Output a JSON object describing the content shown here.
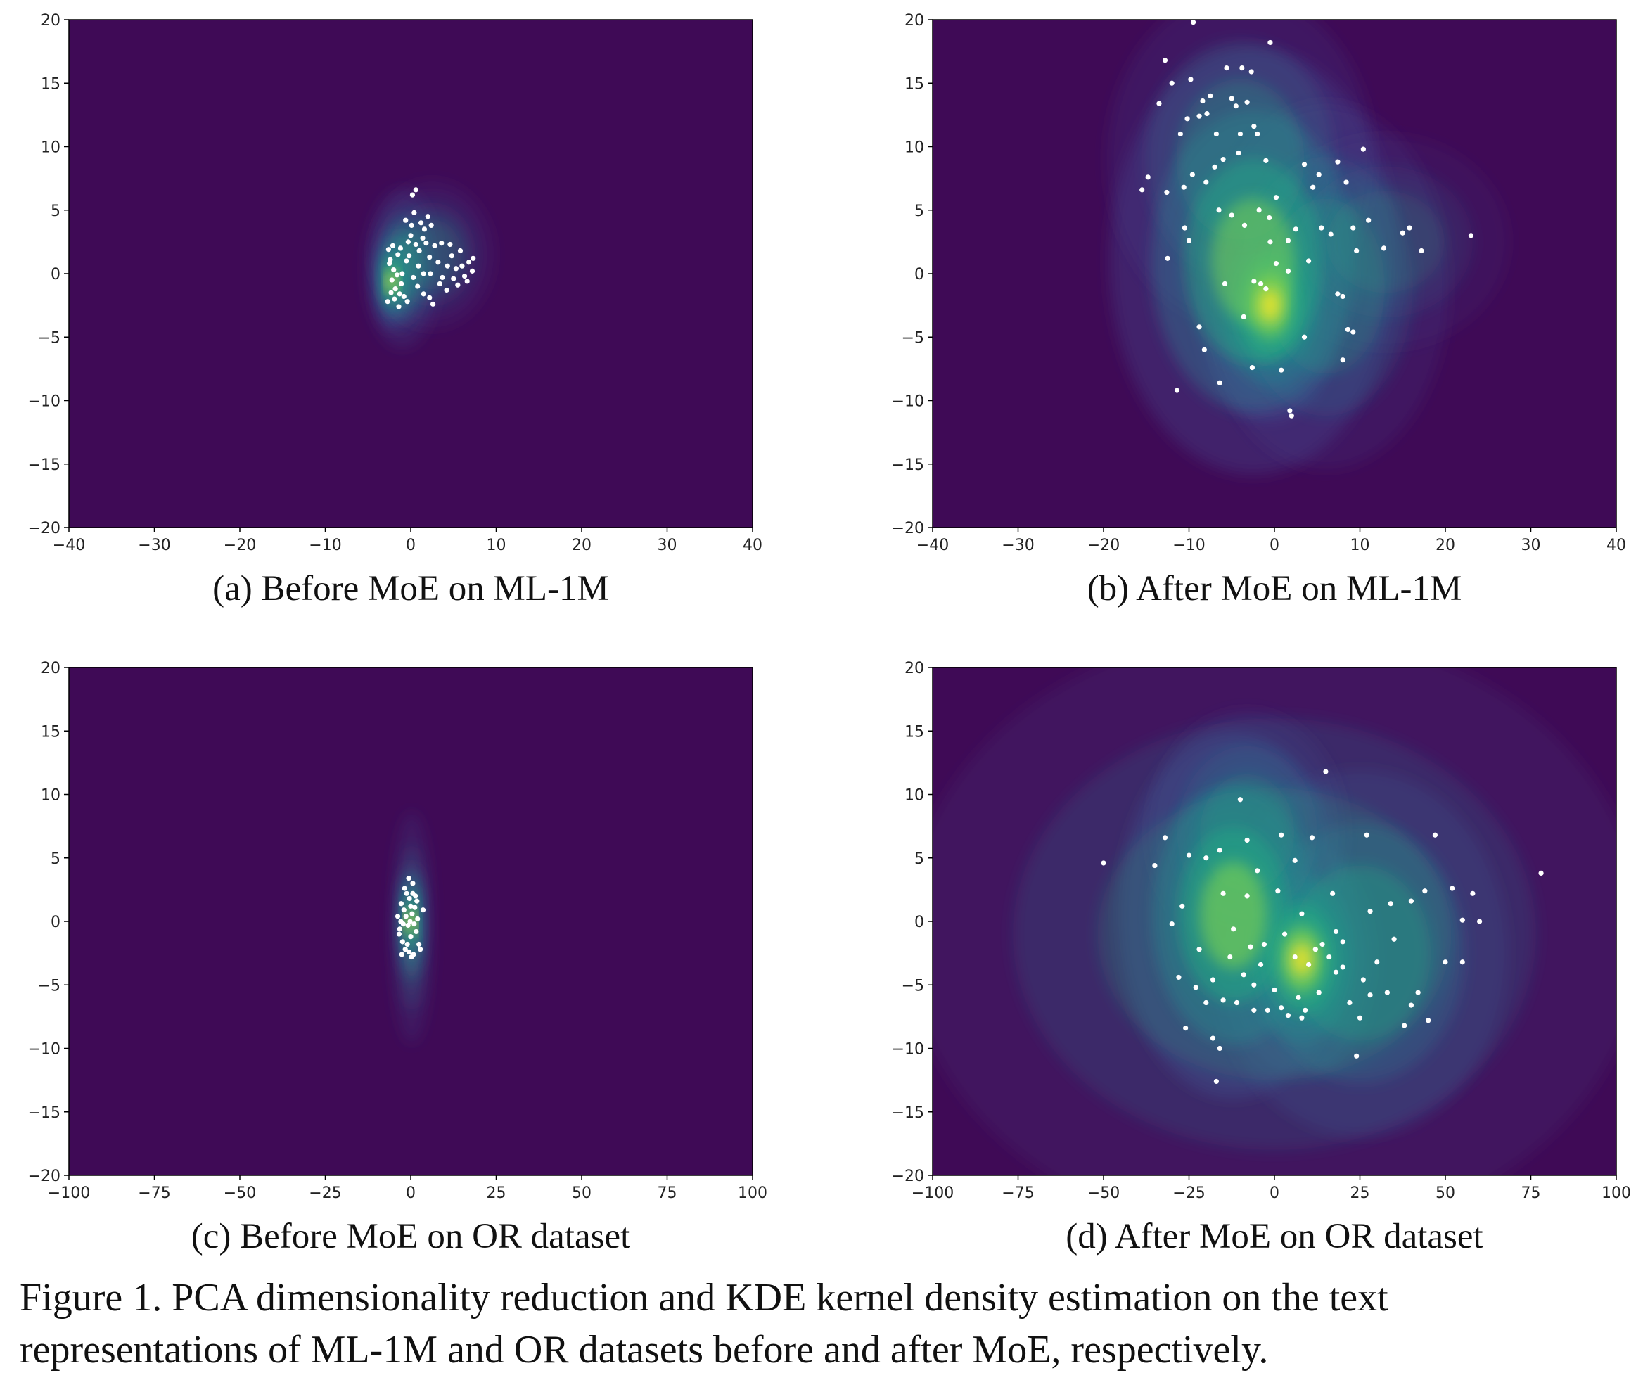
{
  "colors": {
    "background": "#3f0a56",
    "low": "#414487",
    "mid": "#2a788e",
    "high": "#22a884",
    "peak": "#7ad151",
    "max": "#fde725",
    "points": "#ffffff"
  },
  "figure_caption": "Figure 1. PCA dimensionality reduction and KDE kernel density estimation on the text representations of ML-1M and OR datasets before and after MoE, respectively.",
  "chart_data": [
    {
      "type": "kde-scatter",
      "caption": "(a) Before MoE on ML-1M",
      "xlim": [
        -40,
        40
      ],
      "ylim": [
        -20,
        20
      ],
      "xticks": [
        -40,
        -30,
        -20,
        -10,
        0,
        10,
        20,
        30,
        40
      ],
      "yticks": [
        -20,
        -15,
        -10,
        -5,
        0,
        5,
        10,
        15,
        20
      ],
      "kde": [
        {
          "x": -2.2,
          "y": -0.6,
          "sx": 0.9,
          "sy": 1.6,
          "w": 1.0
        },
        {
          "x": -1.0,
          "y": 0.4,
          "sx": 1.8,
          "sy": 2.6,
          "w": 0.45
        },
        {
          "x": 2.5,
          "y": 1.5,
          "sx": 3.0,
          "sy": 2.4,
          "w": 0.22
        }
      ],
      "points": [
        [
          -2.2,
          -0.5
        ],
        [
          -2.0,
          0.3
        ],
        [
          -1.8,
          -1.2
        ],
        [
          -2.5,
          0.8
        ],
        [
          -1.5,
          1.5
        ],
        [
          -1.9,
          -2.0
        ],
        [
          -2.3,
          -1.5
        ],
        [
          -1.2,
          2.0
        ],
        [
          -1.0,
          0.0
        ],
        [
          -2.6,
          1.9
        ],
        [
          -1.6,
          -0.1
        ],
        [
          -0.8,
          -1.8
        ],
        [
          -1.4,
          -2.6
        ],
        [
          -2.1,
          2.2
        ],
        [
          -0.5,
          1.0
        ],
        [
          -1.1,
          -0.8
        ],
        [
          -0.3,
          2.5
        ],
        [
          0.1,
          3.8
        ],
        [
          0.2,
          6.2
        ],
        [
          0.6,
          6.6
        ],
        [
          0.4,
          4.8
        ],
        [
          -0.6,
          4.2
        ],
        [
          1.2,
          4.0
        ],
        [
          1.6,
          3.5
        ],
        [
          2.0,
          4.5
        ],
        [
          2.4,
          3.8
        ],
        [
          1.8,
          2.4
        ],
        [
          1.0,
          1.8
        ],
        [
          0.6,
          2.3
        ],
        [
          2.8,
          2.2
        ],
        [
          2.2,
          1.3
        ],
        [
          3.2,
          0.9
        ],
        [
          3.7,
          -0.3
        ],
        [
          4.3,
          0.6
        ],
        [
          4.8,
          1.4
        ],
        [
          5.3,
          0.4
        ],
        [
          5.8,
          1.8
        ],
        [
          6.3,
          -0.2
        ],
        [
          6.8,
          0.9
        ],
        [
          7.2,
          0.2
        ],
        [
          6.6,
          -0.6
        ],
        [
          5.5,
          -0.9
        ],
        [
          4.2,
          -1.3
        ],
        [
          3.4,
          -0.8
        ],
        [
          2.2,
          -1.9
        ],
        [
          2.6,
          -2.4
        ],
        [
          1.5,
          -1.6
        ],
        [
          0.8,
          -1.0
        ],
        [
          0.3,
          -0.3
        ],
        [
          -0.2,
          1.4
        ],
        [
          0.9,
          0.6
        ],
        [
          1.5,
          0.0
        ],
        [
          2.3,
          0.0
        ],
        [
          4.6,
          2.3
        ],
        [
          3.6,
          2.4
        ],
        [
          -2.7,
          -2.2
        ],
        [
          -1.3,
          -1.6
        ],
        [
          -2.4,
          1.1
        ],
        [
          0.0,
          3.0
        ],
        [
          1.4,
          2.8
        ],
        [
          7.3,
          1.2
        ],
        [
          6.0,
          0.6
        ],
        [
          5.0,
          -0.4
        ],
        [
          -0.4,
          -2.2
        ]
      ]
    },
    {
      "type": "kde-scatter",
      "caption": "(b) After MoE on ML-1M",
      "xlim": [
        -40,
        40
      ],
      "ylim": [
        -20,
        20
      ],
      "xticks": [
        -40,
        -30,
        -20,
        -10,
        0,
        10,
        20,
        30,
        40
      ],
      "yticks": [
        -20,
        -15,
        -10,
        -5,
        0,
        5,
        10,
        15,
        20
      ],
      "kde": [
        {
          "x": -0.5,
          "y": -2.5,
          "sx": 3.5,
          "sy": 3.8,
          "w": 1.0
        },
        {
          "x": -2.5,
          "y": 1.0,
          "sx": 7.0,
          "sy": 7.0,
          "w": 0.6
        },
        {
          "x": -4.0,
          "y": 9.0,
          "sx": 6.5,
          "sy": 5.5,
          "w": 0.28
        },
        {
          "x": 6.0,
          "y": -1.0,
          "sx": 6.0,
          "sy": 6.0,
          "w": 0.25
        },
        {
          "x": 13.0,
          "y": 2.5,
          "sx": 6.0,
          "sy": 3.5,
          "w": 0.12
        }
      ],
      "points": [
        [
          -15.5,
          6.6
        ],
        [
          -14.8,
          7.6
        ],
        [
          -13.5,
          13.4
        ],
        [
          -12.8,
          16.8
        ],
        [
          -12.0,
          15.0
        ],
        [
          -11.0,
          11.0
        ],
        [
          -10.2,
          12.2
        ],
        [
          -9.8,
          15.3
        ],
        [
          -9.5,
          19.8
        ],
        [
          -8.8,
          12.4
        ],
        [
          -8.4,
          13.6
        ],
        [
          -7.9,
          12.6
        ],
        [
          -7.5,
          14.0
        ],
        [
          -6.8,
          11.0
        ],
        [
          -5.6,
          16.2
        ],
        [
          -5.0,
          13.8
        ],
        [
          -4.5,
          13.2
        ],
        [
          -4.0,
          11.0
        ],
        [
          -3.8,
          16.2
        ],
        [
          -3.2,
          13.5
        ],
        [
          -2.7,
          15.9
        ],
        [
          -2.4,
          11.6
        ],
        [
          -2.0,
          11.0
        ],
        [
          -0.5,
          18.2
        ],
        [
          -1.0,
          8.9
        ],
        [
          -4.2,
          9.5
        ],
        [
          -6.0,
          9.0
        ],
        [
          -7.0,
          8.4
        ],
        [
          -8.0,
          7.2
        ],
        [
          -9.6,
          7.8
        ],
        [
          -10.6,
          6.8
        ],
        [
          -10.5,
          3.6
        ],
        [
          -10.0,
          2.6
        ],
        [
          -12.6,
          6.4
        ],
        [
          -12.5,
          1.2
        ],
        [
          -6.5,
          5.0
        ],
        [
          -5.0,
          4.6
        ],
        [
          -3.5,
          3.8
        ],
        [
          -1.8,
          5.0
        ],
        [
          -0.6,
          4.4
        ],
        [
          0.2,
          6.0
        ],
        [
          1.6,
          2.6
        ],
        [
          2.5,
          3.5
        ],
        [
          3.5,
          8.6
        ],
        [
          4.5,
          6.8
        ],
        [
          5.2,
          7.8
        ],
        [
          5.5,
          3.6
        ],
        [
          6.6,
          3.1
        ],
        [
          7.4,
          8.8
        ],
        [
          8.4,
          7.2
        ],
        [
          9.2,
          3.6
        ],
        [
          9.6,
          1.8
        ],
        [
          10.4,
          9.8
        ],
        [
          11.0,
          4.2
        ],
        [
          12.8,
          2.0
        ],
        [
          15.0,
          3.2
        ],
        [
          15.8,
          3.6
        ],
        [
          17.2,
          1.8
        ],
        [
          23.0,
          3.0
        ],
        [
          -2.4,
          -0.6
        ],
        [
          -1.6,
          -0.8
        ],
        [
          -1.0,
          -1.2
        ],
        [
          0.2,
          0.8
        ],
        [
          1.6,
          0.2
        ],
        [
          -8.8,
          -4.2
        ],
        [
          -8.2,
          -6.0
        ],
        [
          -11.4,
          -9.2
        ],
        [
          -6.4,
          -8.6
        ],
        [
          -2.6,
          -7.4
        ],
        [
          0.8,
          -7.6
        ],
        [
          1.8,
          -10.8
        ],
        [
          2.0,
          -11.2
        ],
        [
          3.5,
          -5.0
        ],
        [
          7.4,
          -1.6
        ],
        [
          8.0,
          -1.8
        ],
        [
          8.0,
          -6.8
        ],
        [
          8.6,
          -4.4
        ],
        [
          9.2,
          -4.6
        ],
        [
          -3.6,
          -3.4
        ],
        [
          -5.8,
          -0.8
        ],
        [
          4.0,
          1.0
        ],
        [
          -0.5,
          2.5
        ]
      ]
    },
    {
      "type": "kde-scatter",
      "caption": "(c) Before MoE on OR dataset",
      "xlim": [
        -100,
        100
      ],
      "ylim": [
        -20,
        20
      ],
      "xticks": [
        -100,
        -75,
        -50,
        -25,
        0,
        25,
        50,
        75,
        100
      ],
      "yticks": [
        -20,
        -15,
        -10,
        -5,
        0,
        5,
        10,
        15,
        20
      ],
      "kde": [
        {
          "x": 0.0,
          "y": 0.0,
          "sx": 1.6,
          "sy": 1.8,
          "w": 1.0
        },
        {
          "x": 0.3,
          "y": -0.5,
          "sx": 2.5,
          "sy": 3.8,
          "w": 0.3
        }
      ],
      "points": [
        [
          -3.8,
          0.4
        ],
        [
          -3.2,
          -0.6
        ],
        [
          -2.8,
          1.4
        ],
        [
          -2.4,
          -1.6
        ],
        [
          -2.0,
          0.9
        ],
        [
          -1.6,
          -2.2
        ],
        [
          -1.2,
          2.2
        ],
        [
          -0.8,
          -0.3
        ],
        [
          -0.4,
          1.8
        ],
        [
          0.0,
          -1.2
        ],
        [
          0.4,
          0.6
        ],
        [
          0.8,
          -2.6
        ],
        [
          1.2,
          1.1
        ],
        [
          1.6,
          -0.8
        ],
        [
          2.0,
          0.2
        ],
        [
          2.4,
          -1.8
        ],
        [
          -2.6,
          -2.6
        ],
        [
          -1.8,
          2.6
        ],
        [
          -0.6,
          3.4
        ],
        [
          0.6,
          3.0
        ],
        [
          1.4,
          2.0
        ],
        [
          3.6,
          0.9
        ],
        [
          2.8,
          -2.2
        ],
        [
          -3.4,
          -1.0
        ],
        [
          -1.0,
          -1.8
        ],
        [
          0.2,
          -2.8
        ],
        [
          -0.2,
          0.0
        ],
        [
          -1.4,
          0.4
        ],
        [
          1.0,
          -0.2
        ],
        [
          -2.2,
          -0.2
        ],
        [
          0.0,
          1.2
        ],
        [
          -0.5,
          -2.4
        ],
        [
          1.8,
          1.6
        ],
        [
          -2.9,
          0.0
        ],
        [
          0.6,
          2.2
        ]
      ]
    },
    {
      "type": "kde-scatter",
      "caption": "(d) After MoE on OR dataset",
      "xlim": [
        -100,
        100
      ],
      "ylim": [
        -20,
        20
      ],
      "xticks": [
        -100,
        -75,
        -50,
        -25,
        0,
        25,
        50,
        75,
        100
      ],
      "yticks": [
        -20,
        -15,
        -10,
        -5,
        0,
        5,
        10,
        15,
        20
      ],
      "kde": [
        {
          "x": 8.0,
          "y": -3.0,
          "sx": 9.0,
          "sy": 3.8,
          "w": 1.0
        },
        {
          "x": -12.0,
          "y": 0.5,
          "sx": 14.0,
          "sy": 6.0,
          "w": 0.75
        },
        {
          "x": 25.0,
          "y": -2.5,
          "sx": 18.0,
          "sy": 6.0,
          "w": 0.4
        },
        {
          "x": 0.0,
          "y": -1.0,
          "sx": 45.0,
          "sy": 10.0,
          "w": 0.18
        },
        {
          "x": -8.0,
          "y": 7.0,
          "sx": 12.0,
          "sy": 4.0,
          "w": 0.25
        }
      ],
      "points": [
        [
          -50,
          4.6
        ],
        [
          -35,
          4.4
        ],
        [
          -30,
          -0.2
        ],
        [
          -28,
          -4.4
        ],
        [
          -26,
          -8.4
        ],
        [
          -22,
          -2.2
        ],
        [
          -20,
          -6.4
        ],
        [
          -18,
          -9.2
        ],
        [
          -17,
          -12.6
        ],
        [
          -16,
          -10.0
        ],
        [
          -15,
          -6.2
        ],
        [
          -13,
          -2.8
        ],
        [
          -11,
          -6.4
        ],
        [
          -9,
          -4.2
        ],
        [
          -8,
          6.4
        ],
        [
          -7,
          -2.0
        ],
        [
          -6,
          -7.0
        ],
        [
          -4,
          -3.4
        ],
        [
          -2,
          -7.0
        ],
        [
          0,
          -5.4
        ],
        [
          2,
          -6.8
        ],
        [
          4,
          -7.4
        ],
        [
          6,
          -2.8
        ],
        [
          7,
          -6.0
        ],
        [
          8,
          -7.6
        ],
        [
          10,
          -3.4
        ],
        [
          12,
          -2.2
        ],
        [
          14,
          -1.8
        ],
        [
          15,
          11.8
        ],
        [
          16,
          -2.8
        ],
        [
          18,
          -0.8
        ],
        [
          20,
          -3.6
        ],
        [
          22,
          -6.4
        ],
        [
          25,
          -7.6
        ],
        [
          26,
          -4.6
        ],
        [
          28,
          0.8
        ],
        [
          30,
          -3.2
        ],
        [
          33,
          -5.6
        ],
        [
          35,
          -1.4
        ],
        [
          38,
          -8.2
        ],
        [
          40,
          -6.6
        ],
        [
          42,
          -5.6
        ],
        [
          45,
          -7.8
        ],
        [
          47,
          6.8
        ],
        [
          50,
          -3.2
        ],
        [
          52,
          2.6
        ],
        [
          55,
          0.1
        ],
        [
          58,
          2.2
        ],
        [
          60,
          0.0
        ],
        [
          78,
          3.8
        ],
        [
          -32,
          6.6
        ],
        [
          -25,
          5.2
        ],
        [
          -20,
          5.0
        ],
        [
          -15,
          2.2
        ],
        [
          -12,
          -0.6
        ],
        [
          -10,
          9.6
        ],
        [
          -5,
          4.0
        ],
        [
          2,
          6.8
        ],
        [
          6,
          4.8
        ],
        [
          11,
          6.6
        ],
        [
          17,
          2.2
        ],
        [
          24,
          -10.6
        ],
        [
          27,
          6.8
        ],
        [
          40,
          1.6
        ],
        [
          44,
          2.4
        ],
        [
          55,
          -3.2
        ],
        [
          -27,
          1.2
        ],
        [
          -23,
          -5.2
        ],
        [
          -18,
          -4.6
        ],
        [
          -3,
          -1.8
        ],
        [
          3,
          -1.0
        ],
        [
          8,
          0.6
        ],
        [
          13,
          -5.6
        ],
        [
          20,
          -1.6
        ],
        [
          34,
          1.4
        ],
        [
          -16,
          5.6
        ],
        [
          -6,
          -5.0
        ],
        [
          18,
          -4.0
        ],
        [
          28,
          -5.8
        ],
        [
          -8,
          2.0
        ],
        [
          1,
          2.4
        ],
        [
          9,
          -7.0
        ]
      ]
    }
  ]
}
